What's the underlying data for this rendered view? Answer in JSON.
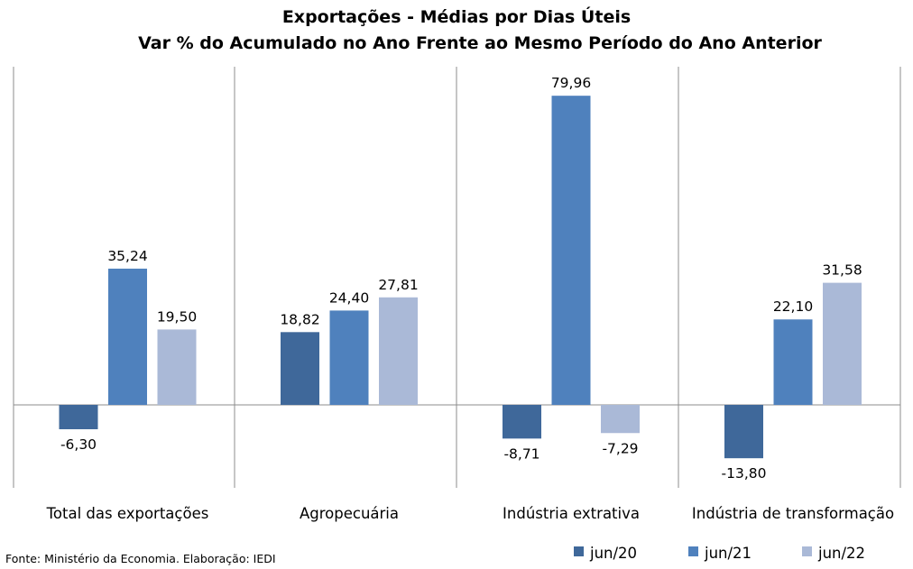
{
  "chart_data": {
    "type": "bar",
    "title": "Exportações - Médias por Dias Úteis",
    "subtitle": "Var % do Acumulado no Ano Frente ao Mesmo Período do Ano Anterior",
    "categories": [
      "Total das exportações",
      "Agropecuária",
      "Indústria extrativa",
      "Indústria de transformação"
    ],
    "series": [
      {
        "name": "jun/20",
        "color": "#3F689A",
        "values": [
          -6.3,
          18.82,
          -8.71,
          -13.8
        ],
        "labels": [
          "-6,30",
          "18,82",
          "-8,71",
          "-13,80"
        ]
      },
      {
        "name": "jun/21",
        "color": "#4F81BD",
        "values": [
          35.24,
          24.4,
          79.96,
          22.1
        ],
        "labels": [
          "35,24",
          "24,40",
          "79,96",
          "22,10"
        ]
      },
      {
        "name": "jun/22",
        "color": "#AAB9D7",
        "values": [
          19.5,
          27.81,
          -7.29,
          31.58
        ],
        "labels": [
          "19,50",
          "27,81",
          "-7,29",
          "31,58"
        ]
      }
    ],
    "ylim": [
      -20,
      85
    ],
    "grid": false,
    "legend_position": "bottom-right"
  },
  "source": "Fonte: Ministério da Economia. Elaboração: IEDI"
}
